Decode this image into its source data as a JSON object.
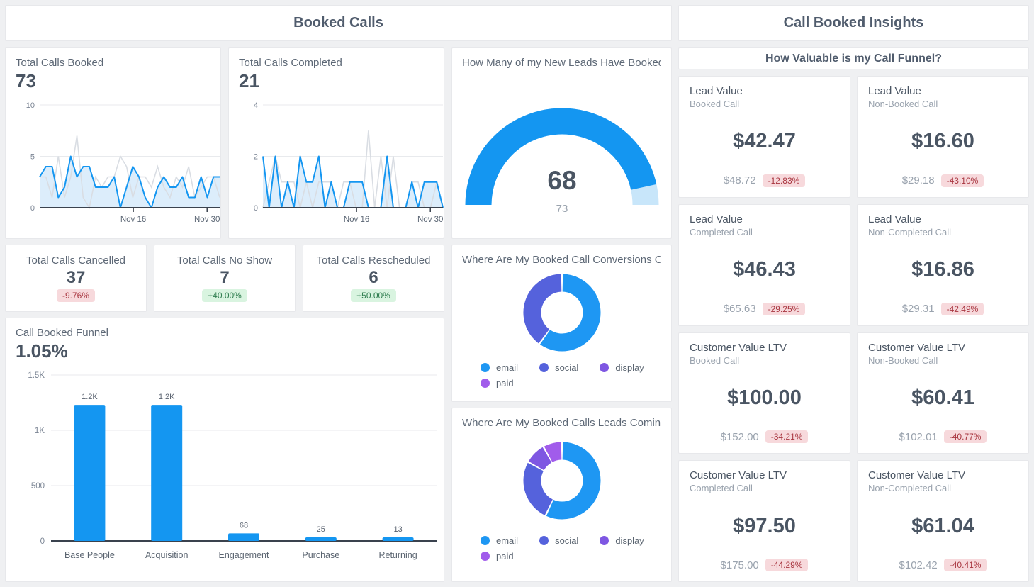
{
  "colors": {
    "accent_blue": "#1496f1",
    "area_fill": "#dcedfb",
    "compare_gray": "#d9dde3",
    "gauge_track": "#c8e6fa",
    "indigo": "#5562dc",
    "purple": "#7e57e2",
    "violet": "#a15ceb",
    "badge_red_bg": "#f7d9dc",
    "badge_red_text": "#a8353f",
    "badge_green_bg": "#d9f4e0",
    "badge_green_text": "#2f7d4f"
  },
  "left_panel": {
    "header": "Booked Calls",
    "booked": {
      "title": "Total Calls Booked",
      "value": "73"
    },
    "completed": {
      "title": "Total Calls Completed",
      "value": "21"
    },
    "gauge": {
      "title": "How Many of my New Leads Have Booked…"
    },
    "kpis": [
      {
        "title": "Total Calls Cancelled",
        "value": "37",
        "delta": "-9.76%",
        "delta_type": "negative"
      },
      {
        "title": "Total Calls No Show",
        "value": "7",
        "delta": "+40.00%",
        "delta_type": "positive"
      },
      {
        "title": "Total Calls Rescheduled",
        "value": "6",
        "delta": "+50.00%",
        "delta_type": "positive"
      }
    ],
    "funnel": {
      "title": "Call Booked Funnel",
      "value": "1.05%"
    },
    "donut_conversions": {
      "title": "Where Are My Booked Call Conversions C…"
    },
    "donut_leads": {
      "title": "Where Are My Booked Calls Leads Coming…"
    }
  },
  "right_panel": {
    "header": "Call Booked Insights",
    "subheader": "How Valuable is my Call Funnel?",
    "cards": [
      {
        "title": "Lead Value",
        "subtitle": "Booked Call",
        "value": "$42.47",
        "previous": "$48.72",
        "delta": "-12.83%",
        "delta_type": "negative"
      },
      {
        "title": "Lead Value",
        "subtitle": "Non-Booked Call",
        "value": "$16.60",
        "previous": "$29.18",
        "delta": "-43.10%",
        "delta_type": "negative"
      },
      {
        "title": "Lead Value",
        "subtitle": "Completed Call",
        "value": "$46.43",
        "previous": "$65.63",
        "delta": "-29.25%",
        "delta_type": "negative"
      },
      {
        "title": "Lead Value",
        "subtitle": "Non-Completed Call",
        "value": "$16.86",
        "previous": "$29.31",
        "delta": "-42.49%",
        "delta_type": "negative"
      },
      {
        "title": "Customer Value LTV",
        "subtitle": "Booked Call",
        "value": "$100.00",
        "previous": "$152.00",
        "delta": "-34.21%",
        "delta_type": "negative"
      },
      {
        "title": "Customer Value LTV",
        "subtitle": "Non-Booked Call",
        "value": "$60.41",
        "previous": "$102.01",
        "delta": "-40.77%",
        "delta_type": "negative"
      },
      {
        "title": "Customer Value LTV",
        "subtitle": "Completed Call",
        "value": "$97.50",
        "previous": "$175.00",
        "delta": "-44.29%",
        "delta_type": "negative"
      },
      {
        "title": "Customer Value LTV",
        "subtitle": "Non-Completed Call",
        "value": "$61.04",
        "previous": "$102.42",
        "delta": "-40.41%",
        "delta_type": "negative"
      }
    ]
  },
  "chart_data": [
    {
      "type": "line",
      "title": "Total Calls Booked",
      "total": 73,
      "x_range": "Nov 1 - Nov 30",
      "ylim": [
        0,
        10
      ],
      "yticks": [
        0,
        5,
        10
      ],
      "xticks": [
        {
          "label": "Nov 16",
          "pos": 0.52
        },
        {
          "label": "Nov 30",
          "pos": 0.93
        }
      ],
      "area_fill": "#dcedfb",
      "grid": true,
      "series": [
        {
          "name": "current period",
          "color": "#1496f1",
          "values": [
            3,
            4,
            4,
            1,
            2,
            5,
            3,
            4,
            4,
            2,
            2,
            2,
            3,
            0,
            2,
            4,
            3,
            1,
            0,
            2,
            3,
            2,
            2,
            3,
            1,
            1,
            3,
            1,
            3,
            3
          ]
        },
        {
          "name": "previous period",
          "color": "#d9dde3",
          "values": [
            3,
            3,
            1,
            5,
            1,
            3,
            7,
            1,
            0,
            3,
            2,
            3,
            3,
            5,
            4,
            1,
            3,
            3,
            2,
            4,
            2,
            1,
            3,
            2,
            4,
            1,
            2,
            3,
            3,
            1
          ]
        }
      ]
    },
    {
      "type": "line",
      "title": "Total Calls Completed",
      "total": 21,
      "x_range": "Nov 1 - Nov 30",
      "ylim": [
        0,
        4
      ],
      "yticks": [
        0,
        2,
        4
      ],
      "xticks": [
        {
          "label": "Nov 16",
          "pos": 0.52
        },
        {
          "label": "Nov 30",
          "pos": 0.93
        }
      ],
      "area_fill": "#dcedfb",
      "grid": true,
      "series": [
        {
          "name": "current period",
          "color": "#1496f1",
          "values": [
            2,
            0,
            2,
            0,
            1,
            0,
            2,
            1,
            1,
            2,
            0,
            1,
            0,
            0,
            1,
            1,
            1,
            0,
            0,
            0,
            2,
            0,
            0,
            0,
            1,
            0,
            1,
            1,
            1,
            0
          ]
        },
        {
          "name": "previous period",
          "color": "#d9dde3",
          "values": [
            0,
            1,
            2,
            1,
            1,
            1,
            0,
            1,
            0,
            1,
            1,
            1,
            0,
            1,
            1,
            0,
            0,
            3,
            0,
            2,
            0,
            2,
            0,
            0,
            1,
            1,
            0,
            0,
            1,
            0
          ]
        }
      ]
    },
    {
      "type": "gauge",
      "title": "How Many of my New Leads Have Booked…",
      "value": 68,
      "max": 73,
      "color": "#1496f1",
      "track_color": "#c8e6fa"
    },
    {
      "type": "pie",
      "title": "Where Are My Booked Call Conversions C…",
      "legend_position": "bottom",
      "slices": [
        {
          "label": "email",
          "value": 60,
          "color": "#1e97f3"
        },
        {
          "label": "social",
          "value": 40,
          "color": "#5562dc"
        },
        {
          "label": "display",
          "value": 0,
          "color": "#7e57e2"
        },
        {
          "label": "paid",
          "value": 0,
          "color": "#a15ceb"
        }
      ]
    },
    {
      "type": "bar",
      "title": "Call Booked Funnel",
      "conversion_rate": "1.05%",
      "categories": [
        "Base People",
        "Acquisition",
        "Engagement",
        "Purchase",
        "Returning"
      ],
      "values": [
        1230,
        1230,
        68,
        25,
        13
      ],
      "value_labels": [
        "1.2K",
        "1.2K",
        "68",
        "25",
        "13"
      ],
      "ylim": [
        0,
        1500
      ],
      "yticks": [
        {
          "v": 0,
          "label": "0"
        },
        {
          "v": 500,
          "label": "500"
        },
        {
          "v": 1000,
          "label": "1K"
        },
        {
          "v": 1500,
          "label": "1.5K"
        }
      ],
      "bar_color": "#1496f1",
      "grid": true
    },
    {
      "type": "pie",
      "title": "Where Are My Booked Calls Leads Coming…",
      "legend_position": "bottom",
      "slices": [
        {
          "label": "email",
          "value": 57,
          "color": "#1e97f3"
        },
        {
          "label": "social",
          "value": 26,
          "color": "#5562dc"
        },
        {
          "label": "display",
          "value": 9,
          "color": "#7e57e2"
        },
        {
          "label": "paid",
          "value": 8,
          "color": "#a15ceb"
        }
      ]
    }
  ]
}
